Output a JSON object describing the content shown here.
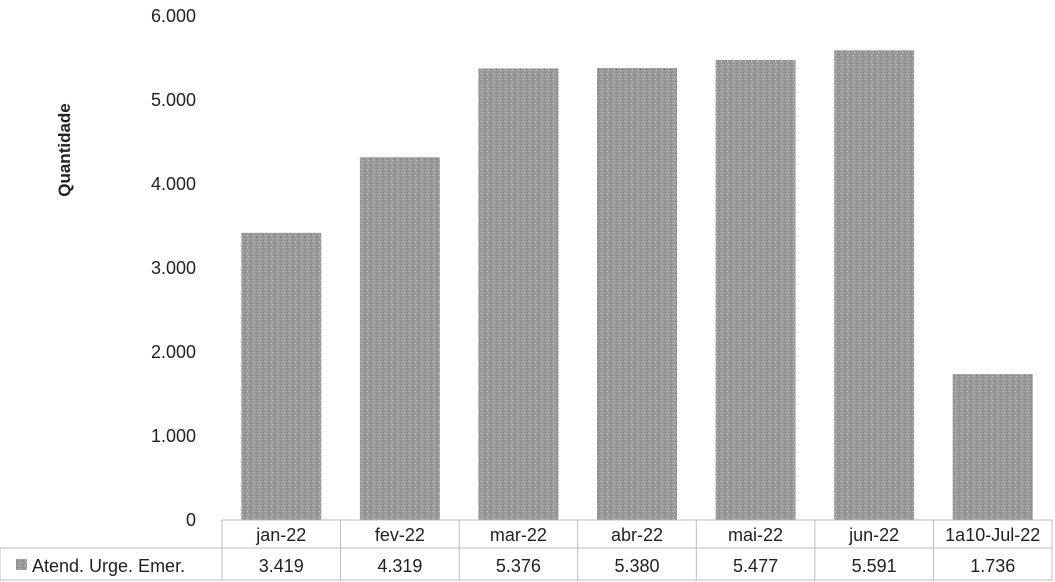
{
  "chart_data": {
    "type": "bar",
    "ylabel": "Quantidade",
    "ylim": [
      0,
      6000
    ],
    "yticks": [
      0,
      1000,
      2000,
      3000,
      4000,
      5000,
      6000
    ],
    "ytick_labels": [
      "0",
      "1.000",
      "2.000",
      "3.000",
      "4.000",
      "5.000",
      "6.000"
    ],
    "categories": [
      "jan-22",
      "fev-22",
      "mar-22",
      "abr-22",
      "mai-22",
      "jun-22",
      "1a10-Jul-22"
    ],
    "series": [
      {
        "name": "Atend. Urge. Emer.",
        "values": [
          3419,
          4319,
          5376,
          5380,
          5477,
          5591,
          1736
        ],
        "value_labels": [
          "3.419",
          "4.319",
          "5.376",
          "5.380",
          "5.477",
          "5.591",
          "1.736"
        ],
        "color": "#9a9a9a"
      }
    ],
    "data_table": true,
    "grid": false,
    "legend": "data-table-left"
  }
}
